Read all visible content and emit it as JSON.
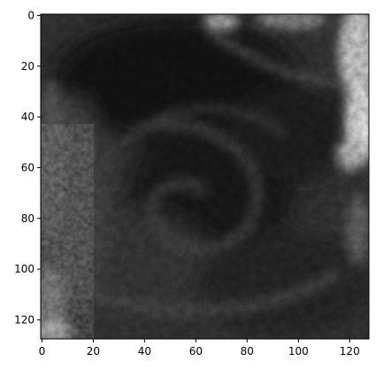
{
  "chart_data": {
    "type": "heatmap",
    "title": "",
    "xlabel": "",
    "ylabel": "",
    "colormap": "grayscale",
    "image_size": [
      128,
      128
    ],
    "xlim": [
      -0.5,
      127.5
    ],
    "ylim": [
      127.5,
      -0.5
    ],
    "xticks": [
      0,
      20,
      40,
      60,
      80,
      100,
      120
    ],
    "yticks": [
      0,
      20,
      40,
      60,
      80,
      100,
      120
    ],
    "grid": false,
    "legend": "none",
    "image_description": "grayscale satellite-like cloud imagery; dark swirl in the center, bright clouds along the upper-right edge, mottled texture along the left edge",
    "colors": {
      "axis": "#000000",
      "dark": "#141414",
      "mid": "#4a4a4a",
      "bright": "#f2f2f2"
    }
  }
}
